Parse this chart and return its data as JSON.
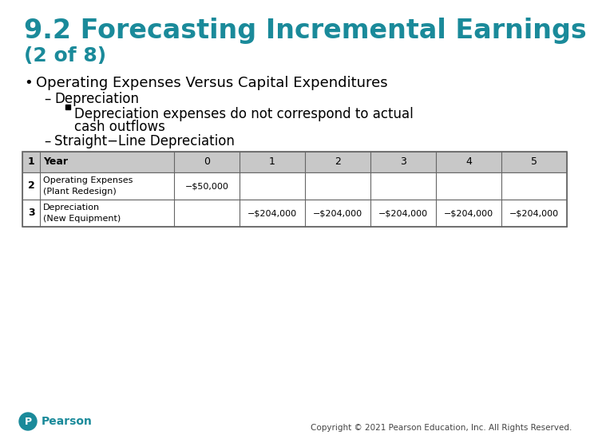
{
  "title_line1": "9.2 Forecasting Incremental Earnings",
  "title_line2": "(2 of 8)",
  "title_color": "#1a8a9a",
  "bg_color": "#ffffff",
  "bullet_text": "Operating Expenses Versus Capital Expenditures",
  "sub1_text": "Depreciation",
  "sub2a_text": "Depreciation expenses do not correspond to actual",
  "sub2b_text": "cash outflows",
  "sub3_text": "Straight−Line Depreciation",
  "footer_text": "Copyright © 2021 Pearson Education, Inc. All Rights Reserved.",
  "text_color": "#000000",
  "table_border_color": "#666666",
  "table_header_bg": "#c8c8c8",
  "pearson_color": "#1a8a9a",
  "row2_val0": "−$50,000",
  "row3_vals": [
    "−$204,000",
    "−$204,000",
    "−$204,000",
    "−$204,000",
    "−$204,000"
  ]
}
